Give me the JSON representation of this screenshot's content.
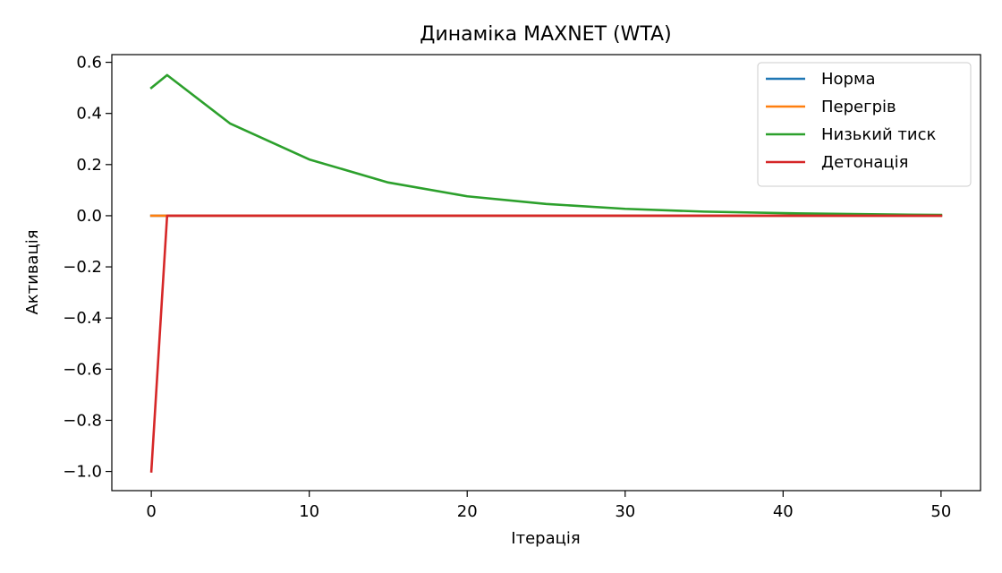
{
  "chart_data": {
    "type": "line",
    "title": "Динаміка MAXNET (WTA)",
    "xlabel": "Ітерація",
    "ylabel": "Активація",
    "xlim": [
      -2.5,
      52.5
    ],
    "ylim": [
      -1.075,
      0.63
    ],
    "xticks": [
      0,
      10,
      20,
      30,
      40,
      50
    ],
    "yticks": [
      -1.0,
      -0.8,
      -0.6,
      -0.4,
      -0.2,
      0.0,
      0.2,
      0.4,
      0.6
    ],
    "xtick_labels": [
      "0",
      "10",
      "20",
      "30",
      "40",
      "50"
    ],
    "ytick_labels": [
      "−1.0",
      "−0.8",
      "−0.6",
      "−0.4",
      "−0.2",
      "0.0",
      "0.2",
      "0.4",
      "0.6"
    ],
    "legend_position": "top-right",
    "grid": false,
    "series": [
      {
        "name": "Норма",
        "color": "#1f77b4",
        "points": [
          [
            0,
            0.0
          ],
          [
            50,
            0.0
          ]
        ]
      },
      {
        "name": "Перегрів",
        "color": "#ff7f0e",
        "points": [
          [
            0,
            0.0
          ],
          [
            50,
            0.0
          ]
        ]
      },
      {
        "name": "Низький тиск",
        "color": "#2ca02c",
        "points": [
          [
            0,
            0.5
          ],
          [
            1,
            0.55
          ],
          [
            5,
            0.36
          ],
          [
            10,
            0.22
          ],
          [
            15,
            0.13
          ],
          [
            20,
            0.076
          ],
          [
            25,
            0.046
          ],
          [
            30,
            0.027
          ],
          [
            35,
            0.016
          ],
          [
            40,
            0.01
          ],
          [
            45,
            0.006
          ],
          [
            50,
            0.003
          ]
        ]
      },
      {
        "name": "Детонація",
        "color": "#d62728",
        "points": [
          [
            0,
            -1.0
          ],
          [
            1,
            0.0
          ],
          [
            50,
            0.0
          ]
        ]
      }
    ]
  }
}
